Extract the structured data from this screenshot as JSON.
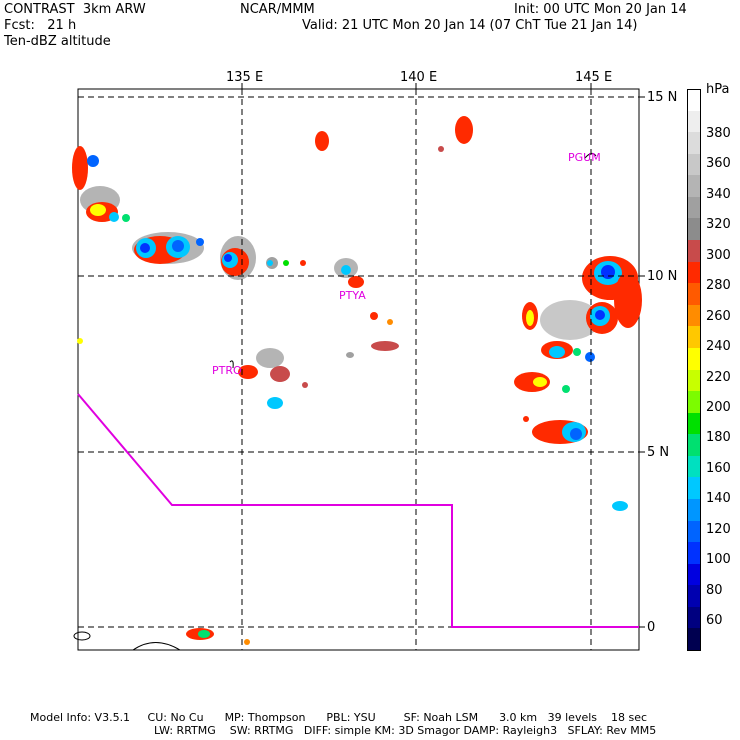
{
  "header": {
    "model": "CONTRAST  3km ARW",
    "org": "NCAR/MMM",
    "init": "Init: 00 UTC Mon 20 Jan 14",
    "fcst": "Fcst:   21 h",
    "valid": "Valid: 21 UTC Mon 20 Jan 14 (07 ChT Tue 21 Jan 14)",
    "field": "Ten-dBZ altitude"
  },
  "map": {
    "lon_labels": [
      "135 E",
      "140 E",
      "145 E"
    ],
    "lat_labels": [
      "15 N",
      "10 N",
      "5 N",
      "0"
    ],
    "station_labels": [
      "PGUM",
      "PTYA",
      "PTRO"
    ],
    "colors": {
      "boundary": "#e000e0",
      "grid": "#000000"
    }
  },
  "colorbar": {
    "unit": "hPa",
    "labels": [
      "380",
      "360",
      "340",
      "320",
      "300",
      "280",
      "260",
      "240",
      "220",
      "200",
      "180",
      "160",
      "140",
      "120",
      "100",
      "80",
      "60"
    ],
    "colors": [
      "#ffffff",
      "#eeeeee",
      "#dcdcdc",
      "#c8c8c8",
      "#b4b4b4",
      "#a0a0a0",
      "#8c8c8c",
      "#c84b4b",
      "#ff2a00",
      "#ff5a00",
      "#ff8c00",
      "#ffc800",
      "#ffff00",
      "#c8ff00",
      "#7cfc00",
      "#00e000",
      "#00e070",
      "#00e0c0",
      "#00c8ff",
      "#0096ff",
      "#0064ff",
      "#0032ff",
      "#0000e0",
      "#0000b0",
      "#000080",
      "#000050"
    ]
  },
  "footer": {
    "line1": "Model Info: V3.5.1     CU: No Cu      MP: Thompson      PBL: YSU        SF: Noah LSM      3.0 km   39 levels    18 sec",
    "line2": "LW: RRTMG    SW: RRTMG   DIFF: simple KM: 3D Smagor DAMP: Rayleigh3   SFLAY: Rev MM5"
  }
}
